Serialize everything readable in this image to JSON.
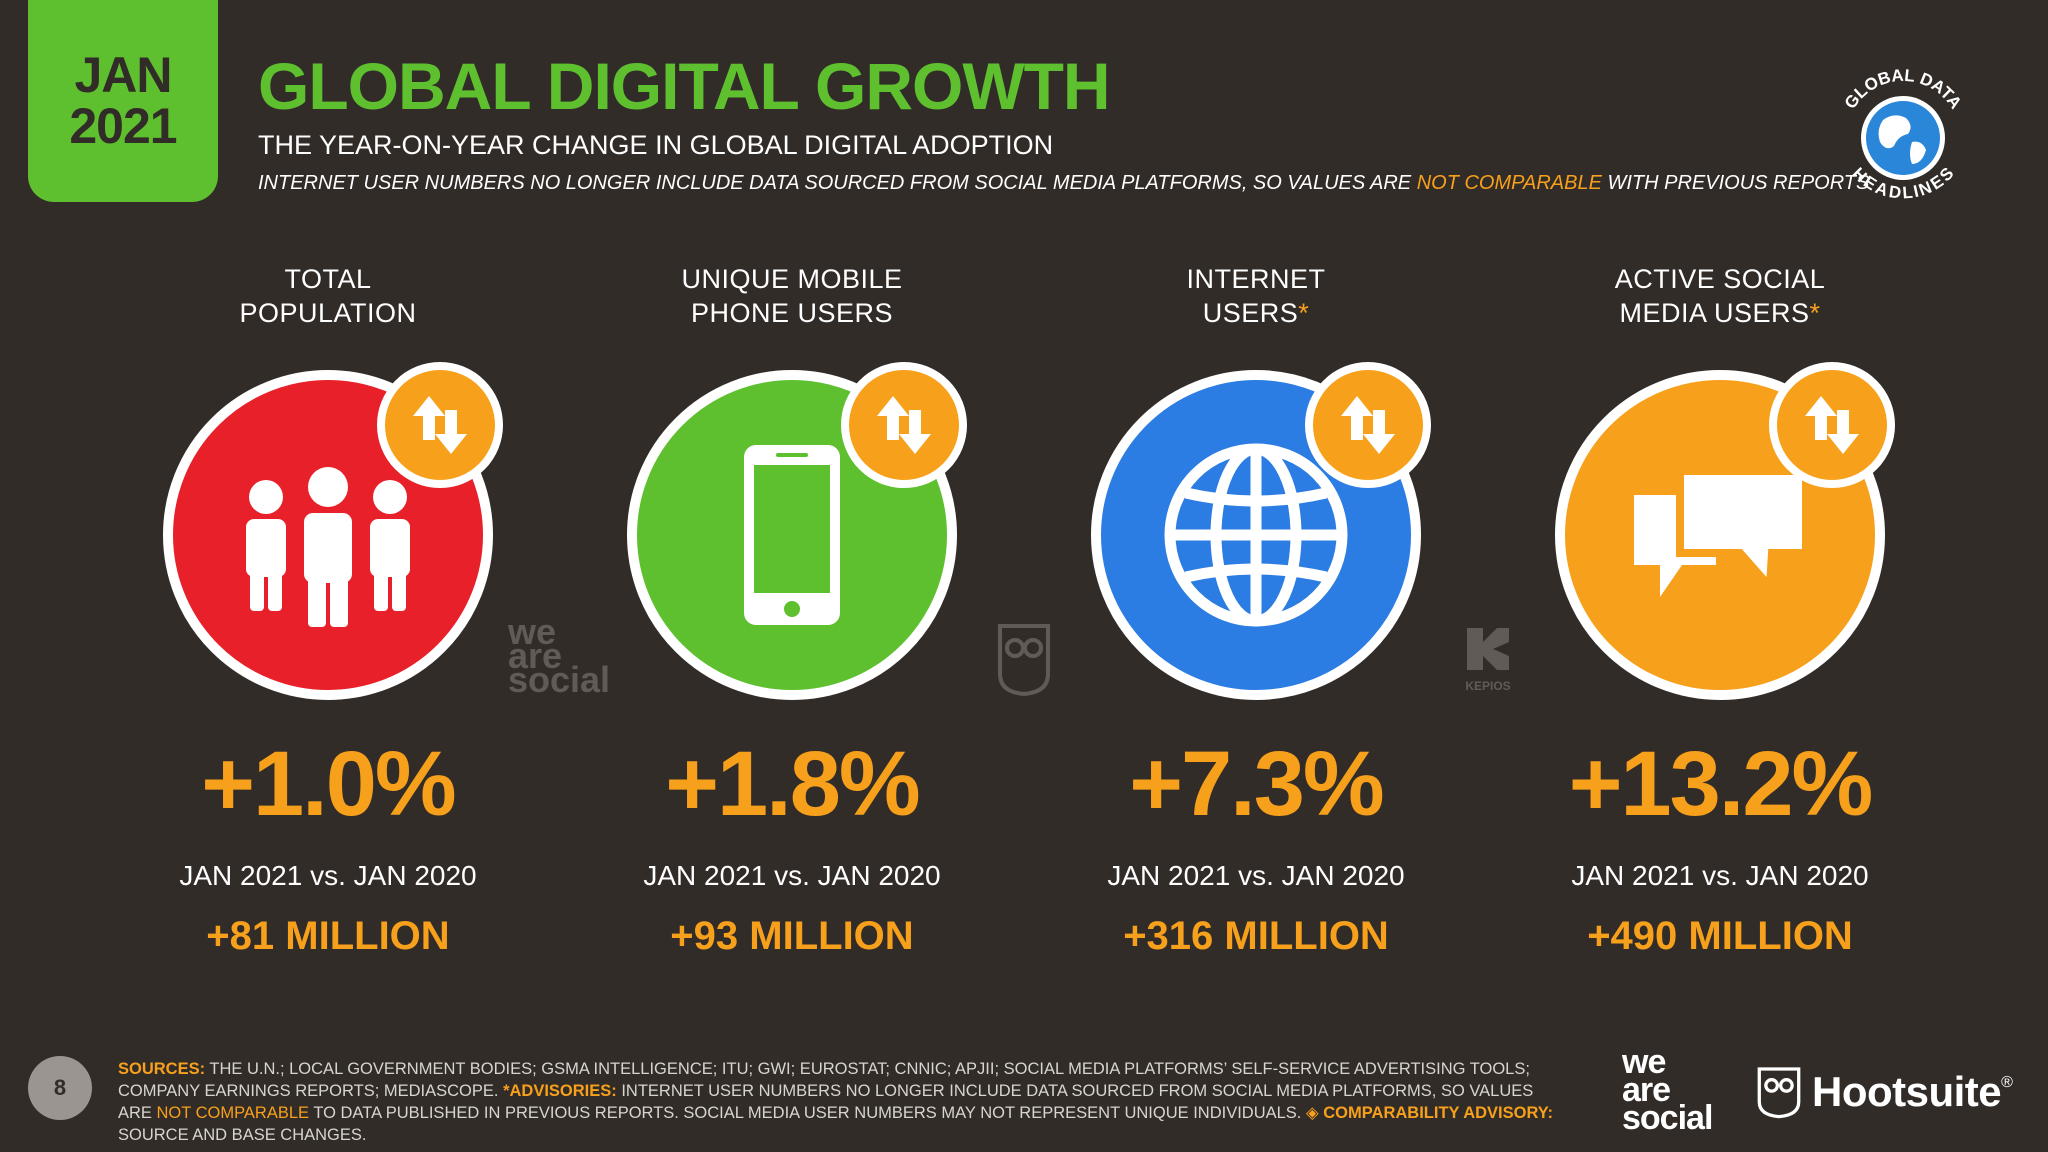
{
  "header": {
    "month": "JAN",
    "year": "2021",
    "title": "GLOBAL DIGITAL GROWTH",
    "subtitle": "THE YEAR-ON-YEAR CHANGE IN GLOBAL DIGITAL ADOPTION",
    "disclaimer_pre": "INTERNET USER NUMBERS NO LONGER INCLUDE DATA SOURCED FROM SOCIAL MEDIA PLATFORMS, SO VALUES ARE ",
    "disclaimer_hl": "NOT COMPARABLE",
    "disclaimer_post": " WITH PREVIOUS REPORTS",
    "gdh_top": "GLOBAL DATA",
    "gdh_bottom": "HEADLINES"
  },
  "colors": {
    "background": "#322c29",
    "green": "#5ec02e",
    "orange": "#f7a01b",
    "red": "#e8202a",
    "blue": "#2b7de3"
  },
  "metrics": [
    {
      "label_line1": "TOTAL",
      "label_line2": "POPULATION",
      "asterisk": "",
      "icon": "people-icon",
      "color": "#e8202a",
      "pct": "+1.0%",
      "comparison": "JAN 2021 vs. JAN 2020",
      "absolute": "+81 MILLION"
    },
    {
      "label_line1": "UNIQUE MOBILE",
      "label_line2": "PHONE USERS",
      "asterisk": "",
      "icon": "mobile-phone-icon",
      "color": "#5ec02e",
      "pct": "+1.8%",
      "comparison": "JAN 2021 vs. JAN 2020",
      "absolute": "+93 MILLION"
    },
    {
      "label_line1": "INTERNET",
      "label_line2": "USERS",
      "asterisk": "*",
      "icon": "globe-icon",
      "color": "#2b7de3",
      "pct": "+7.3%",
      "comparison": "JAN 2021 vs. JAN 2020",
      "absolute": "+316 MILLION"
    },
    {
      "label_line1": "ACTIVE SOCIAL",
      "label_line2": "MEDIA USERS",
      "asterisk": "*",
      "icon": "chat-bubbles-icon",
      "color": "#f7a01b",
      "pct": "+13.2%",
      "comparison": "JAN 2021 vs. JAN 2020",
      "absolute": "+490 MILLION"
    }
  ],
  "watermarks": {
    "was_line1": "we",
    "was_line2": "are",
    "was_line3": "social",
    "kepios": "KEPIOS"
  },
  "footer": {
    "page": "8",
    "sources_label": "SOURCES:",
    "sources_text": " THE U.N.; LOCAL GOVERNMENT BODIES; GSMA INTELLIGENCE; ITU; GWI; EUROSTAT; CNNIC; APJII; SOCIAL MEDIA PLATFORMS’ SELF-SERVICE ADVERTISING TOOLS; COMPANY EARNINGS REPORTS; MEDIASCOPE. ",
    "advisories_label": "*ADVISORIES:",
    "advisories_pre": " INTERNET USER NUMBERS NO LONGER INCLUDE DATA SOURCED FROM SOCIAL MEDIA PLATFORMS, SO VALUES ARE ",
    "advisories_hl": "NOT COMPARABLE",
    "advisories_post": " TO DATA PUBLISHED IN PREVIOUS REPORTS. SOCIAL MEDIA USER NUMBERS MAY NOT REPRESENT UNIQUE INDIVIDUALS. ",
    "comparability_label": "◈ COMPARABILITY ADVISORY:",
    "comparability_text": " SOURCE AND BASE CHANGES.",
    "was_logo_line1": "we",
    "was_logo_line2": "are",
    "was_logo_line3": "social",
    "hootsuite": "Hootsuite",
    "reg": "®"
  }
}
